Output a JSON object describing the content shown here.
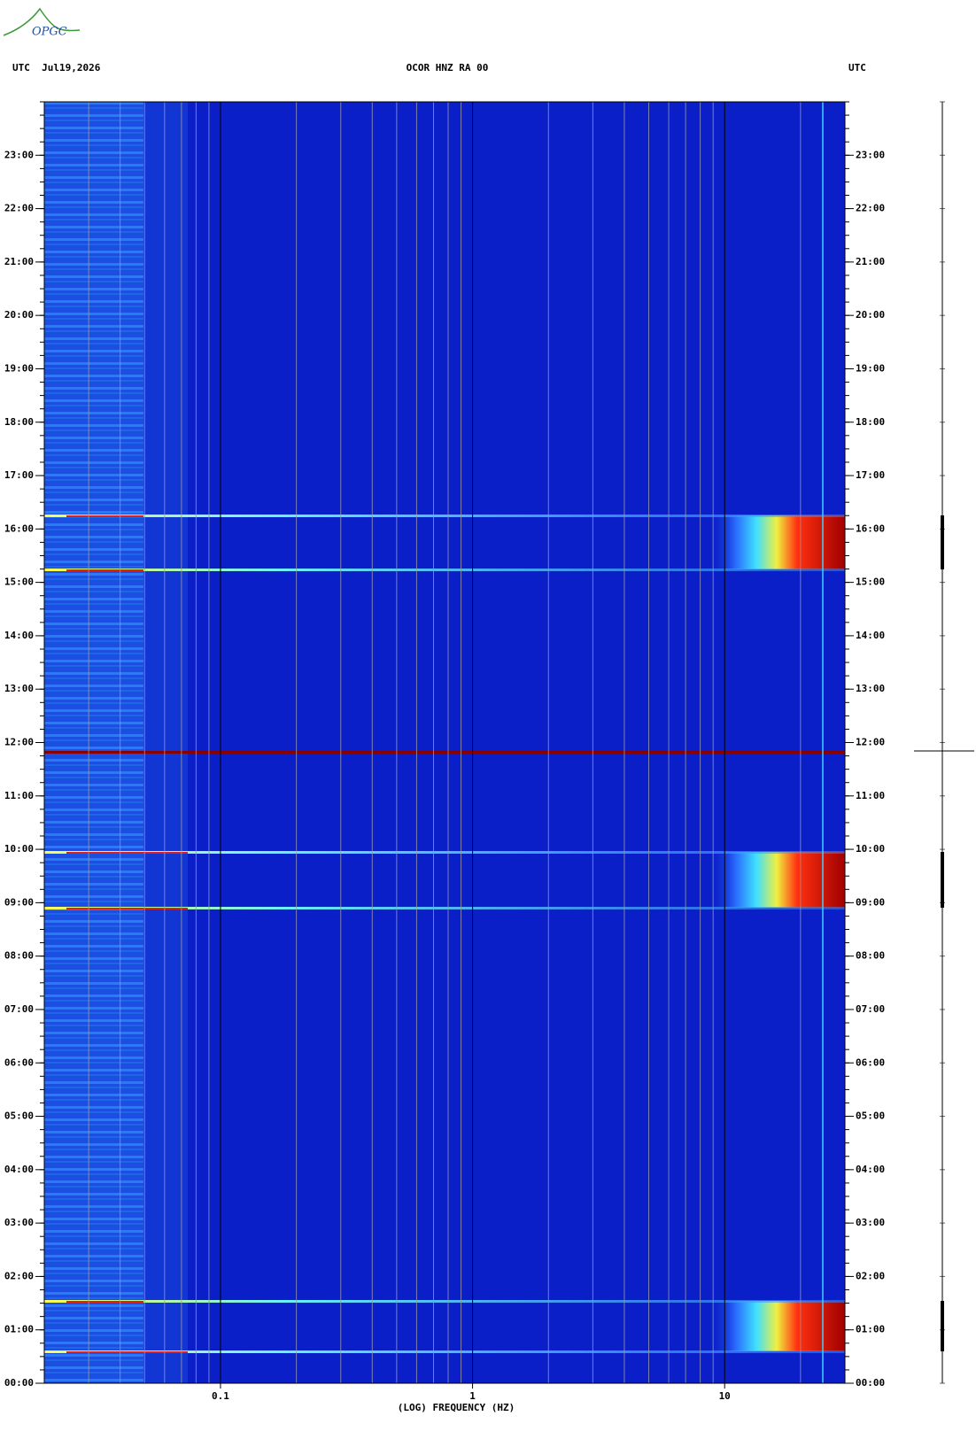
{
  "chart_data": {
    "type": "spectrogram",
    "logo": "OPGC",
    "title": "OCOR HNZ RA 00",
    "left_header": "UTC  Jul19,2026",
    "right_header": "UTC",
    "x_label": "(LOG) FREQUENCY (HZ)",
    "x_log": true,
    "xlim": [
      0.02,
      30
    ],
    "xticks": [
      0.1,
      1,
      10
    ],
    "ylim": [
      0,
      24
    ],
    "yticks": [
      {
        "value": 0,
        "label": "00:00"
      },
      {
        "value": 1,
        "label": "01:00"
      },
      {
        "value": 2,
        "label": "02:00"
      },
      {
        "value": 3,
        "label": "03:00"
      },
      {
        "value": 4,
        "label": "04:00"
      },
      {
        "value": 5,
        "label": "05:00"
      },
      {
        "value": 6,
        "label": "06:00"
      },
      {
        "value": 7,
        "label": "07:00"
      },
      {
        "value": 8,
        "label": "08:00"
      },
      {
        "value": 9,
        "label": "09:00"
      },
      {
        "value": 10,
        "label": "10:00"
      },
      {
        "value": 11,
        "label": "11:00"
      },
      {
        "value": 12,
        "label": "12:00"
      },
      {
        "value": 13,
        "label": "13:00"
      },
      {
        "value": 14,
        "label": "14:00"
      },
      {
        "value": 15,
        "label": "15:00"
      },
      {
        "value": 16,
        "label": "16:00"
      },
      {
        "value": 17,
        "label": "17:00"
      },
      {
        "value": 18,
        "label": "18:00"
      },
      {
        "value": 19,
        "label": "19:00"
      },
      {
        "value": 20,
        "label": "20:00"
      },
      {
        "value": 21,
        "label": "21:00"
      },
      {
        "value": 22,
        "label": "22:00"
      },
      {
        "value": 23,
        "label": "23:00"
      }
    ]
  }
}
